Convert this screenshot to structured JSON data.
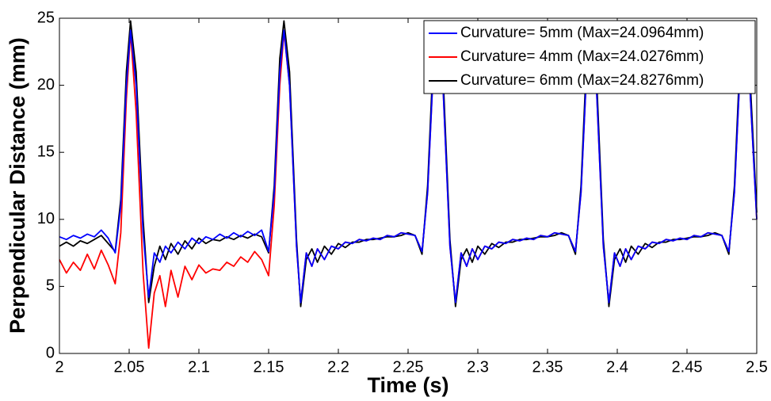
{
  "chart_data": {
    "type": "line",
    "xlabel": "Time (s)",
    "ylabel": "Perpendicular Distance (mm)",
    "xlim": [
      2,
      2.5
    ],
    "ylim": [
      0,
      25
    ],
    "xticks": [
      2,
      2.05,
      2.1,
      2.15,
      2.2,
      2.25,
      2.3,
      2.35,
      2.4,
      2.45,
      2.5
    ],
    "yticks": [
      0,
      5,
      10,
      15,
      20,
      25
    ],
    "legend": "upper right",
    "x": [
      2,
      2.005,
      2.01,
      2.015,
      2.02,
      2.025,
      2.03,
      2.035,
      2.04,
      2.044,
      2.048,
      2.051,
      2.055,
      2.06,
      2.064,
      2.068,
      2.072,
      2.076,
      2.08,
      2.085,
      2.09,
      2.095,
      2.1,
      2.105,
      2.11,
      2.115,
      2.12,
      2.125,
      2.13,
      2.135,
      2.14,
      2.145,
      2.15,
      2.154,
      2.158,
      2.161,
      2.165,
      2.17,
      2.173,
      2.177,
      2.181,
      2.185,
      2.19,
      2.195,
      2.2,
      2.205,
      2.21,
      2.215,
      2.22,
      2.225,
      2.23,
      2.235,
      2.24,
      2.245,
      2.25,
      2.255,
      2.26,
      2.264,
      2.268,
      2.271,
      2.275,
      2.28,
      2.284,
      2.288,
      2.292,
      2.296,
      2.3,
      2.305,
      2.31,
      2.315,
      2.32,
      2.325,
      2.33,
      2.335,
      2.34,
      2.345,
      2.35,
      2.355,
      2.36,
      2.365,
      2.37,
      2.374,
      2.378,
      2.381,
      2.385,
      2.39,
      2.394,
      2.398,
      2.402,
      2.406,
      2.41,
      2.415,
      2.42,
      2.425,
      2.43,
      2.435,
      2.44,
      2.445,
      2.45,
      2.455,
      2.46,
      2.465,
      2.47,
      2.475,
      2.48,
      2.484,
      2.488,
      2.491,
      2.495,
      2.5
    ],
    "series": [
      {
        "name": "Curvature= 5mm (Max=24.0964mm)",
        "color": "#0000ff",
        "values": [
          8.7,
          8.5,
          8.8,
          8.6,
          8.9,
          8.7,
          9.2,
          8.6,
          7.5,
          11,
          20,
          24.1,
          20,
          9,
          4.2,
          7.5,
          6.8,
          8.0,
          7.5,
          8.3,
          7.8,
          8.6,
          8.2,
          8.7,
          8.5,
          8.9,
          8.6,
          9.0,
          8.7,
          9.1,
          8.8,
          9.2,
          7.6,
          12,
          21,
          24.1,
          20,
          8,
          3.8,
          7.5,
          6.5,
          7.8,
          7.0,
          8.0,
          7.8,
          8.3,
          8.2,
          8.5,
          8.4,
          8.6,
          8.5,
          8.8,
          8.7,
          9.0,
          8.9,
          8.8,
          7.6,
          12,
          21,
          24.1,
          20,
          8,
          3.8,
          7.5,
          6.5,
          7.8,
          7.0,
          8.0,
          7.8,
          8.3,
          8.2,
          8.5,
          8.4,
          8.6,
          8.5,
          8.8,
          8.7,
          9.0,
          8.9,
          8.8,
          7.6,
          12,
          21,
          24.1,
          20,
          8,
          3.8,
          7.5,
          6.5,
          7.8,
          7.0,
          8.0,
          7.8,
          8.3,
          8.2,
          8.5,
          8.4,
          8.6,
          8.5,
          8.8,
          8.7,
          9.0,
          8.9,
          8.8,
          7.6,
          12,
          21,
          24.1,
          20,
          10
        ]
      },
      {
        "name": "Curvature= 4mm (Max=24.0276mm)",
        "color": "#ff0000",
        "values": [
          7.0,
          6.0,
          6.8,
          6.2,
          7.4,
          6.3,
          7.7,
          6.6,
          5.2,
          9,
          19,
          24.0,
          18,
          6,
          0.4,
          4.5,
          5.8,
          3.5,
          6.2,
          4.2,
          6.5,
          5.5,
          6.6,
          6.0,
          6.3,
          6.2,
          6.8,
          6.5,
          7.2,
          6.8,
          7.6,
          7.0,
          5.8,
          11,
          20,
          24.0,
          20,
          8,
          3.8,
          7.5,
          6.5,
          7.8,
          7.0,
          8.0,
          7.8,
          8.3,
          8.2,
          8.5,
          8.4,
          8.6,
          8.5,
          8.8,
          8.7,
          9.0,
          8.9,
          8.8,
          7.6,
          12,
          21,
          24.1,
          20,
          8,
          3.8,
          7.5,
          6.5,
          7.8,
          7.0,
          8.0,
          7.8,
          8.3,
          8.2,
          8.5,
          8.4,
          8.6,
          8.5,
          8.8,
          8.7,
          9.0,
          8.9,
          8.8,
          7.6,
          12,
          21,
          24.1,
          20,
          8,
          3.8,
          7.5,
          6.5,
          7.8,
          7.0,
          8.0,
          7.8,
          8.3,
          8.2,
          8.5,
          8.4,
          8.6,
          8.5,
          8.8,
          8.7,
          9.0,
          8.9,
          8.8,
          7.6,
          12,
          21,
          24.1,
          20,
          10
        ]
      },
      {
        "name": "Curvature= 6mm (Max=24.8276mm)",
        "color": "#000000",
        "values": [
          8.0,
          8.3,
          8.0,
          8.4,
          8.2,
          8.5,
          8.8,
          8.2,
          7.6,
          11.5,
          21,
          24.8,
          21,
          10,
          3.8,
          6.5,
          8.0,
          7.0,
          8.2,
          7.4,
          8.4,
          7.8,
          8.6,
          8.2,
          8.5,
          8.4,
          8.7,
          8.5,
          8.8,
          8.6,
          8.9,
          8.7,
          7.5,
          12.5,
          22,
          24.8,
          21,
          8.5,
          3.5,
          7.0,
          7.8,
          6.8,
          8.0,
          7.4,
          8.2,
          7.9,
          8.3,
          8.3,
          8.5,
          8.5,
          8.6,
          8.7,
          8.7,
          8.8,
          9.0,
          8.8,
          7.4,
          12.5,
          22,
          24.8,
          21,
          8.5,
          3.5,
          7.0,
          7.8,
          6.8,
          8.0,
          7.4,
          8.2,
          7.9,
          8.3,
          8.3,
          8.5,
          8.5,
          8.6,
          8.7,
          8.7,
          8.8,
          9.0,
          8.8,
          7.4,
          12.5,
          22,
          24.8,
          21,
          8.5,
          3.5,
          7.0,
          7.8,
          6.8,
          8.0,
          7.4,
          8.2,
          7.9,
          8.3,
          8.3,
          8.5,
          8.5,
          8.6,
          8.7,
          8.7,
          8.8,
          9.0,
          8.8,
          7.4,
          12.5,
          22,
          24.8,
          21,
          10.5
        ]
      }
    ]
  }
}
